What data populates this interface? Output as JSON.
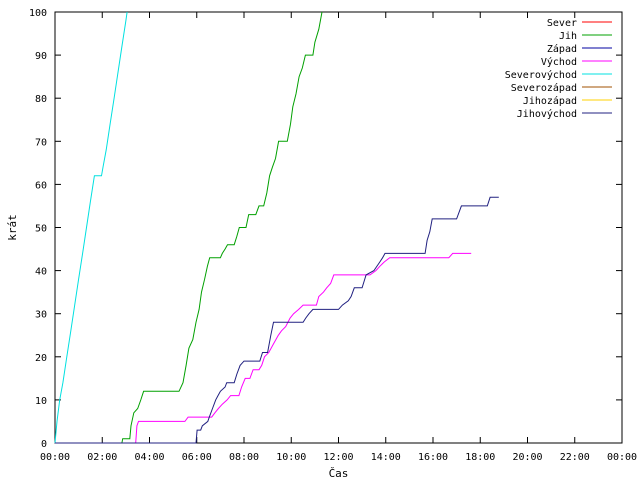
{
  "chart_data": {
    "type": "line",
    "title": "",
    "xlabel": "Čas",
    "ylabel": "krát",
    "grid": false,
    "legend_position": "top-right",
    "xlim": [
      0,
      1440
    ],
    "ylim": [
      0,
      100
    ],
    "x_unit": "minutes since 00:00",
    "xticks": [
      {
        "value": 0,
        "label": "00:00"
      },
      {
        "value": 120,
        "label": "02:00"
      },
      {
        "value": 240,
        "label": "04:00"
      },
      {
        "value": 360,
        "label": "06:00"
      },
      {
        "value": 480,
        "label": "08:00"
      },
      {
        "value": 600,
        "label": "10:00"
      },
      {
        "value": 720,
        "label": "12:00"
      },
      {
        "value": 840,
        "label": "14:00"
      },
      {
        "value": 960,
        "label": "16:00"
      },
      {
        "value": 1080,
        "label": "18:00"
      },
      {
        "value": 1200,
        "label": "20:00"
      },
      {
        "value": 1320,
        "label": "22:00"
      },
      {
        "value": 1440,
        "label": "00:00"
      }
    ],
    "yticks": [
      0,
      10,
      20,
      30,
      40,
      50,
      60,
      70,
      80,
      90,
      100
    ],
    "series": [
      {
        "name": "Sever",
        "color": "#ff0000",
        "points": []
      },
      {
        "name": "Jih",
        "color": "#00a000",
        "points": [
          [
            0,
            0
          ],
          [
            170,
            0
          ],
          [
            172,
            1
          ],
          [
            190,
            1
          ],
          [
            193,
            4
          ],
          [
            200,
            7
          ],
          [
            210,
            8
          ],
          [
            218,
            10
          ],
          [
            225,
            12
          ],
          [
            315,
            12
          ],
          [
            325,
            14
          ],
          [
            333,
            18
          ],
          [
            340,
            22
          ],
          [
            350,
            24
          ],
          [
            358,
            28
          ],
          [
            366,
            31
          ],
          [
            372,
            35
          ],
          [
            380,
            38
          ],
          [
            387,
            41
          ],
          [
            393,
            43
          ],
          [
            420,
            43
          ],
          [
            425,
            44
          ],
          [
            432,
            45
          ],
          [
            438,
            46
          ],
          [
            455,
            46
          ],
          [
            462,
            48
          ],
          [
            468,
            50
          ],
          [
            485,
            50
          ],
          [
            492,
            53
          ],
          [
            510,
            53
          ],
          [
            518,
            55
          ],
          [
            530,
            55
          ],
          [
            538,
            58
          ],
          [
            545,
            62
          ],
          [
            552,
            64
          ],
          [
            560,
            66
          ],
          [
            568,
            70
          ],
          [
            590,
            70
          ],
          [
            598,
            74
          ],
          [
            604,
            78
          ],
          [
            612,
            81
          ],
          [
            620,
            85
          ],
          [
            628,
            87
          ],
          [
            636,
            90
          ],
          [
            655,
            90
          ],
          [
            660,
            93
          ],
          [
            670,
            96
          ],
          [
            678,
            100
          ]
        ]
      },
      {
        "name": "Západ",
        "color": "#0000a0",
        "points": []
      },
      {
        "name": "Východ",
        "color": "#ff00ff",
        "points": [
          [
            0,
            0
          ],
          [
            205,
            0
          ],
          [
            208,
            4
          ],
          [
            212,
            5
          ],
          [
            330,
            5
          ],
          [
            338,
            6
          ],
          [
            398,
            6
          ],
          [
            406,
            7
          ],
          [
            415,
            8
          ],
          [
            425,
            9
          ],
          [
            437,
            10
          ],
          [
            446,
            11
          ],
          [
            467,
            11
          ],
          [
            474,
            13
          ],
          [
            483,
            15
          ],
          [
            495,
            15
          ],
          [
            503,
            17
          ],
          [
            518,
            17
          ],
          [
            525,
            18
          ],
          [
            532,
            20
          ],
          [
            543,
            21
          ],
          [
            555,
            23
          ],
          [
            567,
            25
          ],
          [
            575,
            26
          ],
          [
            586,
            27
          ],
          [
            597,
            29
          ],
          [
            606,
            30
          ],
          [
            619,
            31
          ],
          [
            630,
            32
          ],
          [
            664,
            32
          ],
          [
            670,
            34
          ],
          [
            682,
            35
          ],
          [
            690,
            36
          ],
          [
            700,
            37
          ],
          [
            708,
            39
          ],
          [
            800,
            39
          ],
          [
            815,
            40
          ],
          [
            825,
            41
          ],
          [
            836,
            42
          ],
          [
            850,
            43
          ],
          [
            1000,
            43
          ],
          [
            1010,
            44
          ],
          [
            1057,
            44
          ]
        ]
      },
      {
        "name": "Severovýchod",
        "color": "#00e0e0",
        "points": [
          [
            0,
            0
          ],
          [
            5,
            5
          ],
          [
            12,
            10
          ],
          [
            20,
            14
          ],
          [
            30,
            20
          ],
          [
            40,
            26
          ],
          [
            50,
            32
          ],
          [
            60,
            38
          ],
          [
            70,
            44
          ],
          [
            80,
            50
          ],
          [
            90,
            56
          ],
          [
            100,
            62
          ],
          [
            118,
            62
          ],
          [
            122,
            64
          ],
          [
            130,
            68
          ],
          [
            140,
            74
          ],
          [
            150,
            80
          ],
          [
            160,
            86
          ],
          [
            170,
            92
          ],
          [
            180,
            98
          ],
          [
            183,
            100
          ]
        ]
      },
      {
        "name": "Severozápad",
        "color": "#a05000",
        "points": []
      },
      {
        "name": "Jihozápad",
        "color": "#ffd000",
        "points": []
      },
      {
        "name": "Jihovýchod",
        "color": "#202080",
        "points": [
          [
            0,
            0
          ],
          [
            358,
            0
          ],
          [
            361,
            3
          ],
          [
            370,
            3
          ],
          [
            374,
            4
          ],
          [
            388,
            5
          ],
          [
            392,
            6
          ],
          [
            400,
            8
          ],
          [
            408,
            10
          ],
          [
            414,
            11
          ],
          [
            420,
            12
          ],
          [
            432,
            13
          ],
          [
            436,
            14
          ],
          [
            455,
            14
          ],
          [
            462,
            16
          ],
          [
            470,
            18
          ],
          [
            480,
            19
          ],
          [
            520,
            19
          ],
          [
            527,
            21
          ],
          [
            540,
            21
          ],
          [
            548,
            25
          ],
          [
            555,
            28
          ],
          [
            630,
            28
          ],
          [
            637,
            29
          ],
          [
            645,
            30
          ],
          [
            655,
            31
          ],
          [
            720,
            31
          ],
          [
            730,
            32
          ],
          [
            745,
            33
          ],
          [
            752,
            34
          ],
          [
            760,
            36
          ],
          [
            780,
            36
          ],
          [
            790,
            39
          ],
          [
            810,
            40
          ],
          [
            825,
            42
          ],
          [
            832,
            43
          ],
          [
            838,
            44
          ],
          [
            940,
            44
          ],
          [
            945,
            47
          ],
          [
            952,
            49
          ],
          [
            958,
            52
          ],
          [
            1020,
            52
          ],
          [
            1032,
            55
          ],
          [
            1098,
            55
          ],
          [
            1105,
            57
          ],
          [
            1127,
            57
          ]
        ]
      }
    ]
  }
}
